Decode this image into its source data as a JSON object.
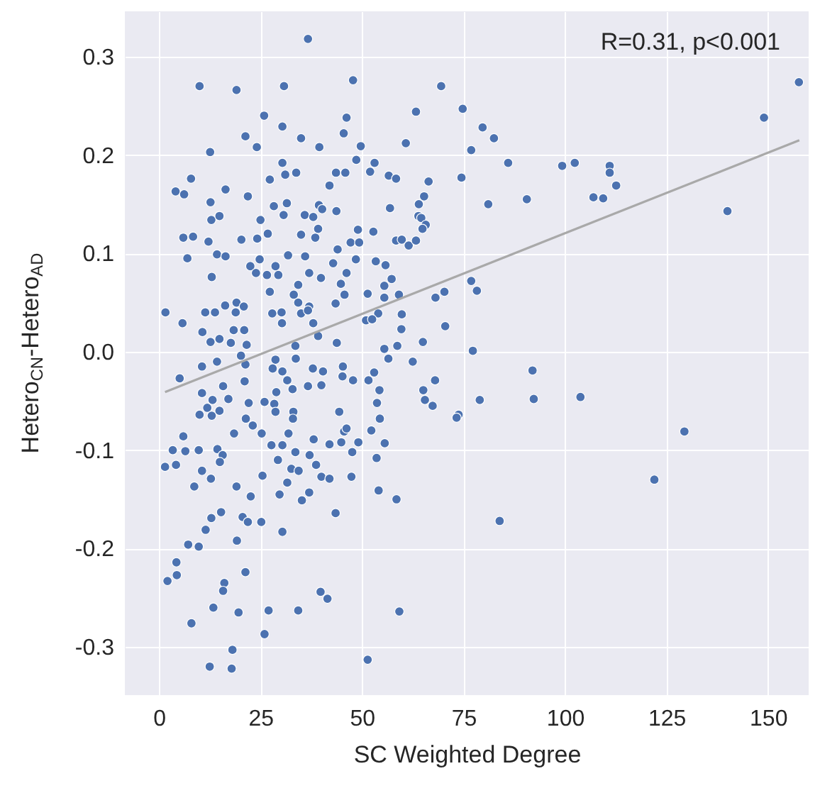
{
  "chart_data": {
    "type": "scatter",
    "xlabel": "SC Weighted Degree",
    "ylabel": "Hetero$_{CN}$-Hetero$_{AD}$",
    "annotations": [
      "R=0.31, p<0.001"
    ],
    "xlim": [
      -8.4,
      160
    ],
    "ylim": [
      -0.349,
      0.346
    ],
    "xticks": [
      0,
      25,
      50,
      75,
      100,
      125,
      150
    ],
    "yticks": [
      -0.3,
      -0.2,
      -0.1,
      {
        "value": 0,
        "label": "0.0"
      },
      0.1,
      0.2,
      0.3
    ],
    "grid": true,
    "series": [
      {
        "type": "scatter",
        "marker": "circle",
        "color": "#4c72b0",
        "x": [
          157.6,
          149,
          140,
          129.4,
          122,
          111,
          111,
          112.6,
          107,
          109.4,
          102.4,
          99.3,
          90.6,
          86,
          81.1,
          82.5,
          79.7,
          76.9,
          74.8,
          74.5,
          76.9,
          78.3,
          77.3,
          92,
          92.3,
          103.8,
          79,
          73.8,
          83.9,
          36.7,
          10,
          19.1,
          30.8,
          47.8,
          69.5,
          25.9,
          30.4,
          46.2,
          63.3,
          21.3,
          35,
          45.5,
          12.6,
          24.1,
          39.5,
          49.7,
          60.8,
          30.4,
          48.6,
          53.1,
          7.9,
          4.1,
          6.2,
          16.4,
          27.3,
          31.1,
          33.8,
          43.6,
          45.9,
          52,
          56.6,
          58.4,
          66.4,
          42,
          21.9,
          12.7,
          65.3,
          64,
          28.3,
          31.5,
          39.4,
          40.2,
          43.7,
          56.9,
          12.9,
          14.9,
          25,
          30.7,
          35.9,
          38,
          63.9,
          64.6,
          39.2,
          65.7,
          49,
          52.8,
          64.9,
          6,
          8.4,
          12.2,
          20.3,
          24.2,
          26.8,
          35,
          38.5,
          47.2,
          49.3,
          58.4,
          59.8,
          61.5,
          63.3,
          7,
          14.3,
          16.4,
          31.8,
          36,
          44,
          48.5,
          22.5,
          24.8,
          28.7,
          42.9,
          53.4,
          55.8,
          13,
          23.9,
          26.6,
          29.4,
          37,
          39.9,
          46.2,
          57.3,
          34.3,
          44.8,
          55.5,
          27.3,
          33.2,
          45.7,
          51.4,
          55.5,
          59.1,
          68.1,
          70.3,
          16.3,
          19.1,
          20.9,
          34.3,
          37,
          43.5,
          1.6,
          11.4,
          13.8,
          18.9,
          27.9,
          30.2,
          35,
          36.7,
          54,
          59.8,
          5.8,
          30.3,
          38,
          51,
          52.5,
          70.5,
          10.7,
          18.4,
          21,
          59.7,
          12.7,
          14.9,
          17.7,
          21.6,
          39.2,
          43.8,
          65,
          33.6,
          55.5,
          58.7,
          5.1,
          10.6,
          14.3,
          20.2,
          21.3,
          28.7,
          33.7,
          28,
          30.4,
          37.9,
          40.4,
          45.3,
          45.2,
          47.8,
          51.6,
          53,
          56.5,
          62.5,
          68,
          21.1,
          31.6,
          36.7,
          40,
          10.6,
          15.8,
          32.9,
          28.9,
          65.1,
          54.3,
          13.2,
          17.1,
          22.1,
          26,
          28.4,
          11.9,
          14.9,
          53.7,
          65.5,
          67.4,
          10,
          13,
          28.7,
          33.1,
          33,
          44.4,
          54.4,
          73.3,
          21.4,
          18.5,
          23.1,
          25.3,
          31.9,
          45.6,
          46.2,
          52.3,
          6,
          38.1,
          44.9,
          49.1,
          55.6,
          42,
          27.7,
          30.4,
          3.4,
          6.5,
          9.8,
          14.4,
          15.7,
          33.6,
          37.1,
          47.6,
          53.6,
          29.3,
          15,
          38.7,
          1.5,
          4.2,
          10.6,
          32.6,
          34.4,
          12.8,
          25.5,
          40,
          42,
          47.4,
          8.7,
          19.1,
          31.6,
          22.6,
          29.7,
          37,
          35.2,
          54.1,
          58.5,
          43.5,
          12.9,
          15.3,
          20.6,
          21.9,
          25.2,
          30.4,
          11.5,
          7.2,
          9.8,
          19.2,
          4.3,
          4.4,
          2.1,
          21.3,
          16.1,
          15.8,
          39.8,
          41.5,
          13.4,
          19.6,
          27,
          34.3,
          59.2,
          8,
          26,
          18.1,
          12.5,
          17.9,
          51.4
        ],
        "values": [
          0.274,
          0.238,
          0.143,
          -0.081,
          -0.13,
          0.189,
          0.182,
          0.169,
          0.157,
          0.156,
          0.192,
          0.189,
          0.155,
          0.192,
          0.15,
          0.217,
          0.228,
          0.205,
          0.247,
          0.177,
          0.072,
          0.062,
          0.001,
          -0.019,
          -0.048,
          -0.046,
          -0.049,
          -0.064,
          -0.172,
          0.318,
          0.27,
          0.266,
          0.27,
          0.276,
          0.27,
          0.24,
          0.229,
          0.238,
          0.244,
          0.219,
          0.217,
          0.222,
          0.203,
          0.208,
          0.208,
          0.209,
          0.212,
          0.192,
          0.195,
          0.192,
          0.176,
          0.163,
          0.16,
          0.165,
          0.175,
          0.18,
          0.182,
          0.182,
          0.182,
          0.183,
          0.179,
          0.176,
          0.173,
          0.169,
          0.158,
          0.152,
          0.158,
          0.15,
          0.148,
          0.151,
          0.149,
          0.145,
          0.143,
          0.146,
          0.134,
          0.138,
          0.134,
          0.139,
          0.139,
          0.137,
          0.138,
          0.136,
          0.125,
          0.129,
          0.124,
          0.122,
          0.125,
          0.116,
          0.117,
          0.112,
          0.114,
          0.115,
          0.12,
          0.119,
          0.116,
          0.111,
          0.111,
          0.113,
          0.114,
          0.108,
          0.113,
          0.095,
          0.099,
          0.097,
          0.098,
          0.097,
          0.104,
          0.094,
          0.087,
          0.094,
          0.087,
          0.09,
          0.092,
          0.088,
          0.076,
          0.08,
          0.078,
          0.078,
          0.08,
          0.075,
          0.08,
          0.074,
          0.068,
          0.069,
          0.067,
          0.061,
          0.058,
          0.058,
          0.059,
          0.055,
          0.058,
          0.055,
          0.061,
          0.047,
          0.05,
          0.046,
          0.05,
          0.046,
          0.049,
          0.04,
          0.04,
          0.04,
          0.04,
          0.039,
          0.04,
          0.039,
          0.042,
          0.039,
          0.038,
          0.029,
          0.029,
          0.029,
          0.032,
          0.033,
          0.026,
          0.02,
          0.022,
          0.022,
          0.023,
          0.01,
          0.013,
          0.009,
          0.007,
          0.016,
          0.009,
          0.01,
          0.006,
          0.003,
          0.006,
          -0.027,
          -0.015,
          -0.01,
          -0.004,
          -0.013,
          -0.008,
          -0.007,
          -0.017,
          -0.02,
          -0.017,
          -0.02,
          -0.015,
          -0.025,
          -0.029,
          -0.029,
          -0.021,
          -0.007,
          -0.01,
          -0.029,
          -0.03,
          -0.029,
          -0.035,
          -0.034,
          -0.042,
          -0.035,
          -0.038,
          -0.041,
          -0.039,
          -0.039,
          -0.049,
          -0.048,
          -0.052,
          -0.051,
          -0.053,
          -0.057,
          -0.06,
          -0.052,
          -0.049,
          -0.055,
          -0.064,
          -0.065,
          -0.061,
          -0.061,
          -0.068,
          -0.061,
          -0.068,
          -0.067,
          -0.068,
          -0.083,
          -0.075,
          -0.083,
          -0.083,
          -0.081,
          -0.078,
          -0.08,
          -0.086,
          -0.089,
          -0.092,
          -0.092,
          -0.093,
          -0.094,
          -0.095,
          -0.095,
          -0.1,
          -0.101,
          -0.1,
          -0.099,
          -0.105,
          -0.102,
          -0.105,
          -0.102,
          -0.108,
          -0.11,
          -0.112,
          -0.115,
          -0.117,
          -0.115,
          -0.121,
          -0.119,
          -0.121,
          -0.129,
          -0.126,
          -0.127,
          -0.129,
          -0.127,
          -0.137,
          -0.137,
          -0.133,
          -0.147,
          -0.145,
          -0.143,
          -0.151,
          -0.141,
          -0.15,
          -0.164,
          -0.169,
          -0.163,
          -0.168,
          -0.173,
          -0.173,
          -0.183,
          -0.181,
          -0.196,
          -0.198,
          -0.192,
          -0.214,
          -0.227,
          -0.233,
          -0.224,
          -0.235,
          -0.243,
          -0.244,
          -0.251,
          -0.26,
          -0.265,
          -0.263,
          -0.263,
          -0.264,
          -0.276,
          -0.287,
          -0.303,
          -0.32,
          -0.322,
          -0.313
        ]
      },
      {
        "type": "line",
        "marker": "none",
        "color": "#a9a9a9",
        "x": [
          1.5,
          157.7
        ],
        "values": [
          -0.041,
          0.215
        ]
      }
    ]
  }
}
